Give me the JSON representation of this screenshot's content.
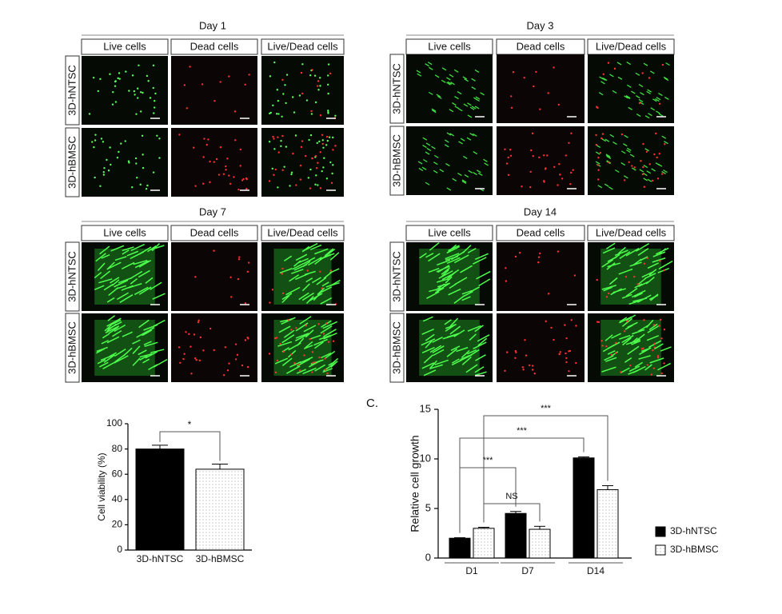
{
  "panels": [
    {
      "title": "Day 1",
      "columns": [
        "Live cells",
        "Dead cells",
        "Live/Dead cells"
      ],
      "rows": [
        "3D-hNTSC",
        "3D-hBMSC"
      ]
    },
    {
      "title": "Day 3",
      "columns": [
        "Live cells",
        "Dead cells",
        "Live/Dead cells"
      ],
      "rows": [
        "3D-hNTSC",
        "3D-hBMSC"
      ]
    },
    {
      "title": "Day 7",
      "columns": [
        "Live cells",
        "Dead cells",
        "Live/Dead cells"
      ],
      "rows": [
        "3D-hNTSC",
        "3D-hBMSC"
      ]
    },
    {
      "title": "Day 14",
      "columns": [
        "Live cells",
        "Dead cells",
        "Live/Dead cells"
      ],
      "rows": [
        "3D-hNTSC",
        "3D-hBMSC"
      ]
    }
  ],
  "chart_data": [
    {
      "type": "bar",
      "y_label": "Cell viability (%)",
      "categories": [
        "3D-hNTSC",
        "3D-hBMSC"
      ],
      "values": [
        80,
        64
      ],
      "errors": [
        3,
        4
      ],
      "colors": [
        "#000000",
        "#bbbbbb"
      ],
      "ylim": [
        0,
        100
      ],
      "yticks": [
        0,
        20,
        40,
        60,
        80,
        100
      ],
      "annotations": [
        "*"
      ]
    },
    {
      "type": "grouped-bar",
      "label": "C.",
      "y_label": "Relative cell growth",
      "categories": [
        "D1",
        "D7",
        "D14"
      ],
      "series": [
        {
          "name": "3D-hNTSC",
          "color": "#000000",
          "values": [
            2.0,
            4.5,
            10.1
          ],
          "errors": [
            0.05,
            0.2,
            0.1
          ]
        },
        {
          "name": "3D-hBMSC",
          "color": "#bbbbbb",
          "values": [
            3.0,
            2.9,
            6.9
          ],
          "errors": [
            0.1,
            0.3,
            0.4
          ]
        }
      ],
      "ylim": [
        0,
        15
      ],
      "yticks": [
        0,
        5,
        10,
        15
      ],
      "annotations": [
        "***",
        "NS",
        "***",
        "***"
      ]
    }
  ]
}
